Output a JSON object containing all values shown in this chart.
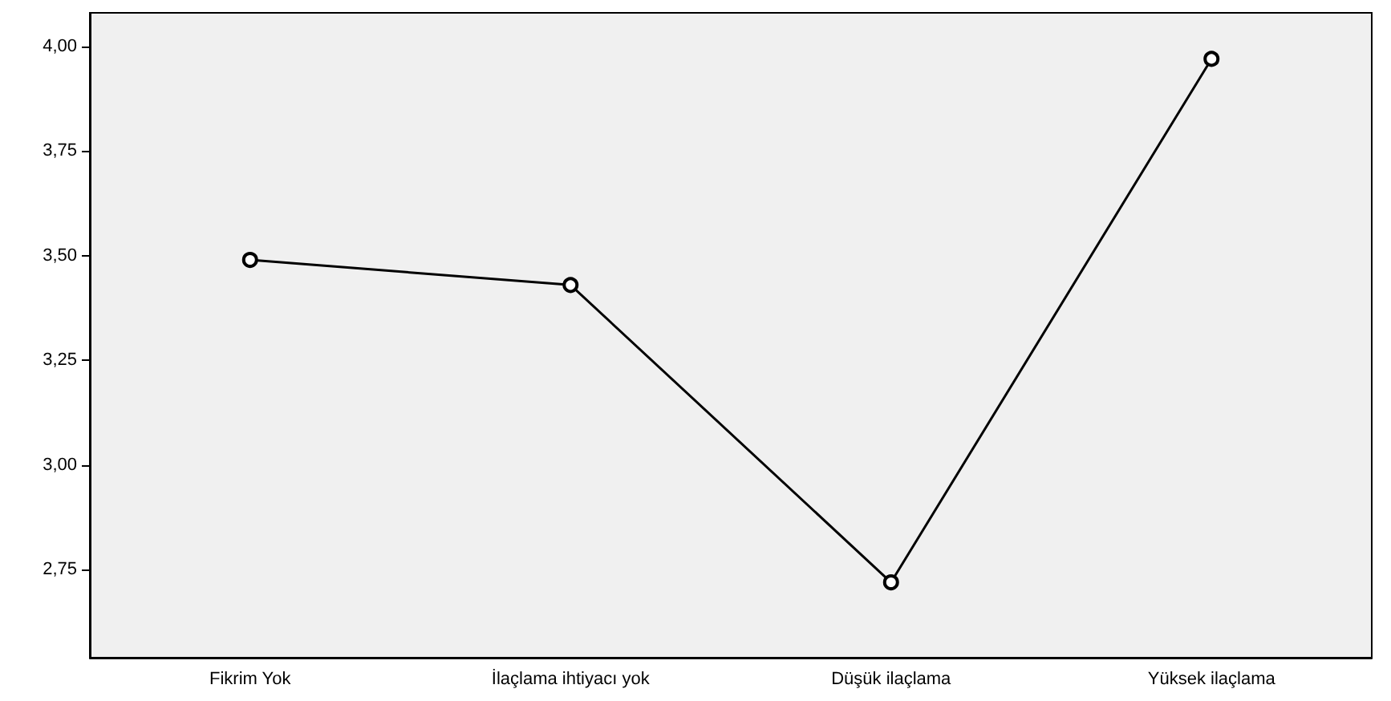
{
  "chart_data": {
    "type": "line",
    "categories": [
      "Fikrim Yok",
      "İlaçlama ihtiyacı yok",
      "Düşük ilaçlama",
      "Yüksek ilaçlama"
    ],
    "values": [
      3.49,
      3.43,
      2.72,
      3.97
    ],
    "color": "#000000",
    "marker": "circle",
    "line_style": "solid",
    "ylim": [
      2.54,
      4.08
    ],
    "yticks": [
      {
        "value": 2.75,
        "label": "2,75"
      },
      {
        "value": 3,
        "label": "3,00"
      },
      {
        "value": 3.25,
        "label": "3,25"
      },
      {
        "value": 3.5,
        "label": "3,50"
      },
      {
        "value": 3.75,
        "label": "3,75"
      },
      {
        "value": 4,
        "label": "4,00"
      }
    ]
  }
}
